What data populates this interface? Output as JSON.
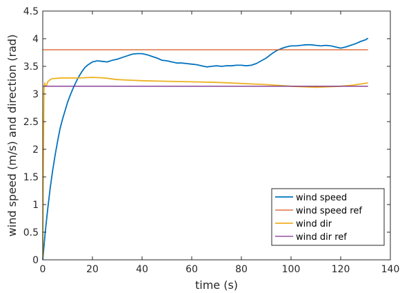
{
  "chart_data": {
    "type": "line",
    "xlabel": "time (s)",
    "ylabel": "wind speed (m/s) and direction (rad)",
    "xlim": [
      0,
      140
    ],
    "ylim": [
      0,
      4.5
    ],
    "xticks": [
      0,
      20,
      40,
      60,
      80,
      100,
      120,
      140
    ],
    "yticks": [
      0,
      0.5,
      1,
      1.5,
      2,
      2.5,
      3,
      3.5,
      4,
      4.5
    ],
    "xtick_labels": [
      "0",
      "20",
      "40",
      "60",
      "80",
      "100",
      "120",
      "140"
    ],
    "ytick_labels": [
      "0",
      "0.5",
      "1",
      "1.5",
      "2",
      "2.5",
      "3",
      "3.5",
      "4",
      "4.5"
    ],
    "grid": false,
    "legend_position": "bottom-right",
    "series": [
      {
        "name": "wind speed",
        "color": "#0072BD",
        "x": [
          0,
          0.5,
          1,
          2,
          3,
          4,
          5,
          6,
          7,
          8,
          9,
          10,
          11,
          12,
          13,
          14,
          15,
          16,
          17,
          18,
          19,
          20,
          22,
          24,
          26,
          28,
          30,
          32,
          34,
          36,
          38,
          40,
          42,
          44,
          46,
          48,
          50,
          52,
          54,
          56,
          58,
          60,
          62,
          64,
          66,
          68,
          70,
          72,
          74,
          76,
          78,
          80,
          82,
          84,
          86,
          88,
          90,
          92,
          94,
          96,
          98,
          100,
          102,
          104,
          106,
          108,
          110,
          112,
          114,
          116,
          118,
          120,
          122,
          124,
          126,
          128,
          130,
          131
        ],
        "values": [
          0,
          0.25,
          0.5,
          0.92,
          1.3,
          1.62,
          1.9,
          2.15,
          2.38,
          2.55,
          2.7,
          2.85,
          2.97,
          3.08,
          3.18,
          3.27,
          3.35,
          3.42,
          3.48,
          3.52,
          3.55,
          3.58,
          3.6,
          3.59,
          3.58,
          3.61,
          3.63,
          3.66,
          3.69,
          3.72,
          3.73,
          3.73,
          3.71,
          3.68,
          3.65,
          3.61,
          3.6,
          3.58,
          3.56,
          3.56,
          3.55,
          3.54,
          3.53,
          3.51,
          3.49,
          3.5,
          3.51,
          3.5,
          3.51,
          3.51,
          3.52,
          3.52,
          3.51,
          3.52,
          3.55,
          3.6,
          3.65,
          3.72,
          3.78,
          3.82,
          3.85,
          3.87,
          3.87,
          3.88,
          3.89,
          3.89,
          3.88,
          3.87,
          3.88,
          3.87,
          3.85,
          3.83,
          3.85,
          3.88,
          3.91,
          3.95,
          3.98,
          4.01
        ]
      },
      {
        "name": "wind speed ref",
        "color": "#D95319",
        "x": [
          0,
          131
        ],
        "values": [
          3.8,
          3.8
        ]
      },
      {
        "name": "wind dir",
        "color": "#EDB120",
        "x": [
          0,
          0.2,
          0.5,
          0.8,
          1,
          1.5,
          2,
          3,
          4,
          5,
          7,
          10,
          15,
          20,
          25,
          30,
          35,
          40,
          50,
          60,
          70,
          80,
          90,
          100,
          105,
          110,
          115,
          120,
          125,
          131
        ],
        "values": [
          0.05,
          1.5,
          3.1,
          3.2,
          3.14,
          3.15,
          3.22,
          3.26,
          3.28,
          3.28,
          3.29,
          3.29,
          3.29,
          3.3,
          3.29,
          3.26,
          3.25,
          3.24,
          3.23,
          3.22,
          3.21,
          3.19,
          3.17,
          3.14,
          3.13,
          3.12,
          3.13,
          3.14,
          3.16,
          3.2
        ]
      },
      {
        "name": "wind dir ref",
        "color": "#7E2F8E",
        "x": [
          0,
          131
        ],
        "values": [
          3.14,
          3.14
        ]
      }
    ]
  }
}
